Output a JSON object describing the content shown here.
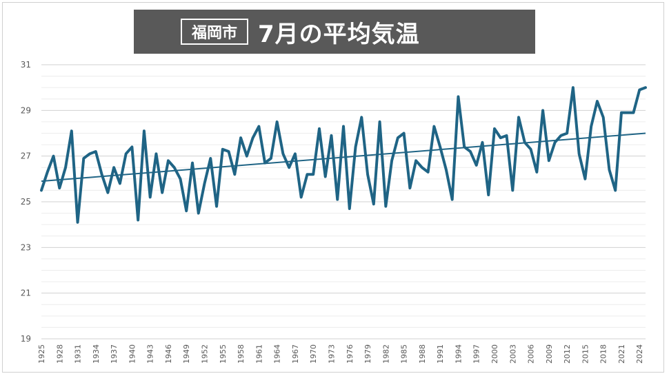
{
  "title": {
    "city": "福岡市",
    "main": "7月の平均気温"
  },
  "colors": {
    "line": "#1f6485",
    "trend": "#1f6485",
    "grid": "#d9d9d9",
    "banner": "#595959"
  },
  "chart_data": {
    "type": "line",
    "title": "福岡市 7月の平均気温",
    "xlabel": "",
    "ylabel": "",
    "ylim": [
      19,
      31
    ],
    "yticks": [
      19,
      21,
      23,
      25,
      27,
      29,
      31
    ],
    "xticks": [
      "1925",
      "1928",
      "1931",
      "1934",
      "1937",
      "1940",
      "1943",
      "1946",
      "1949",
      "1952",
      "1955",
      "1958",
      "1961",
      "1964",
      "1967",
      "1970",
      "1973",
      "1976",
      "1979",
      "1982",
      "1985",
      "1988",
      "1991",
      "1994",
      "1997",
      "2000",
      "2003",
      "2006",
      "2009",
      "2012",
      "2015",
      "2018",
      "2021",
      "2024"
    ],
    "grid": true,
    "legend": "none",
    "x": [
      1925,
      1926,
      1927,
      1928,
      1929,
      1930,
      1931,
      1932,
      1933,
      1934,
      1935,
      1936,
      1937,
      1938,
      1939,
      1940,
      1941,
      1942,
      1943,
      1944,
      1945,
      1946,
      1947,
      1948,
      1949,
      1950,
      1951,
      1952,
      1953,
      1954,
      1955,
      1956,
      1957,
      1958,
      1959,
      1960,
      1961,
      1962,
      1963,
      1964,
      1965,
      1966,
      1967,
      1968,
      1969,
      1970,
      1971,
      1972,
      1973,
      1974,
      1975,
      1976,
      1977,
      1978,
      1979,
      1980,
      1981,
      1982,
      1983,
      1984,
      1985,
      1986,
      1987,
      1988,
      1989,
      1990,
      1991,
      1992,
      1993,
      1994,
      1995,
      1996,
      1997,
      1998,
      1999,
      2000,
      2001,
      2002,
      2003,
      2004,
      2005,
      2006,
      2007,
      2008,
      2009,
      2010,
      2011,
      2012,
      2013,
      2014,
      2015,
      2016,
      2017,
      2018,
      2019,
      2020,
      2021,
      2022,
      2023,
      2024,
      2025
    ],
    "series": [
      {
        "values": [
          25.5,
          26.3,
          27.0,
          25.6,
          26.5,
          28.1,
          24.1,
          26.9,
          27.1,
          27.2,
          26.2,
          25.4,
          26.5,
          25.8,
          27.1,
          27.4,
          24.2,
          28.1,
          25.2,
          27.1,
          25.4,
          26.8,
          26.5,
          26.0,
          24.6,
          26.7,
          24.5,
          25.8,
          26.9,
          24.8,
          27.3,
          27.2,
          26.2,
          27.8,
          27.0,
          27.8,
          28.3,
          26.7,
          26.9,
          28.5,
          27.1,
          26.5,
          27.1,
          25.2,
          26.2,
          26.2,
          28.2,
          26.1,
          27.9,
          25.1,
          28.3,
          24.7,
          27.4,
          28.7,
          26.2,
          24.9,
          28.5,
          24.8,
          26.8,
          27.8,
          28.0,
          25.6,
          26.8,
          26.5,
          26.3,
          28.3,
          27.4,
          26.4,
          25.1,
          29.6,
          27.4,
          27.2,
          26.6,
          27.6,
          25.3,
          28.2,
          27.8,
          27.9,
          25.5,
          28.7,
          27.6,
          27.3,
          26.3,
          29.0,
          26.8,
          27.6,
          27.9,
          28.0,
          30.0,
          27.1,
          26.0,
          28.3,
          29.4,
          28.7,
          26.4,
          25.5,
          28.9,
          28.9,
          28.9,
          29.9,
          30.0
        ]
      }
    ],
    "trendline": {
      "start": [
        1925,
        25.9
      ],
      "end": [
        2025,
        28.0
      ]
    }
  }
}
